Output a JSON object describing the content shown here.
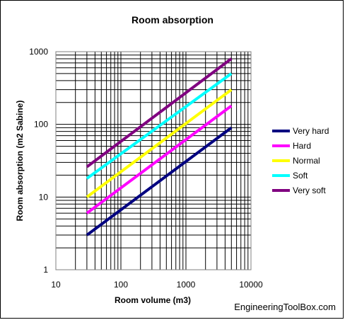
{
  "chart_data": {
    "type": "line",
    "title": "Room absorption",
    "xlabel": "Room volume (m3)",
    "ylabel": "Room absorption (m2 Sabine)",
    "x_scale": "log",
    "y_scale": "log",
    "xlim": [
      10,
      10000
    ],
    "ylim": [
      1,
      1000
    ],
    "x_ticks": [
      "10",
      "100",
      "1000",
      "10000"
    ],
    "y_ticks": [
      "1",
      "10",
      "100",
      "1000"
    ],
    "grid": true,
    "legend_position": "right",
    "series": [
      {
        "name": "Very hard",
        "color": "#000080",
        "x": [
          30,
          5000
        ],
        "y": [
          3,
          90
        ]
      },
      {
        "name": "Hard",
        "color": "#ff00ff",
        "x": [
          30,
          5000
        ],
        "y": [
          6,
          180
        ]
      },
      {
        "name": "Normal",
        "color": "#ffff00",
        "x": [
          30,
          5000
        ],
        "y": [
          10,
          300
        ]
      },
      {
        "name": "Soft",
        "color": "#00ffff",
        "x": [
          30,
          5000
        ],
        "y": [
          18,
          500
        ]
      },
      {
        "name": "Very soft",
        "color": "#800080",
        "x": [
          30,
          5000
        ],
        "y": [
          26,
          800
        ]
      }
    ]
  },
  "credit": "EngineeringToolBox.com"
}
